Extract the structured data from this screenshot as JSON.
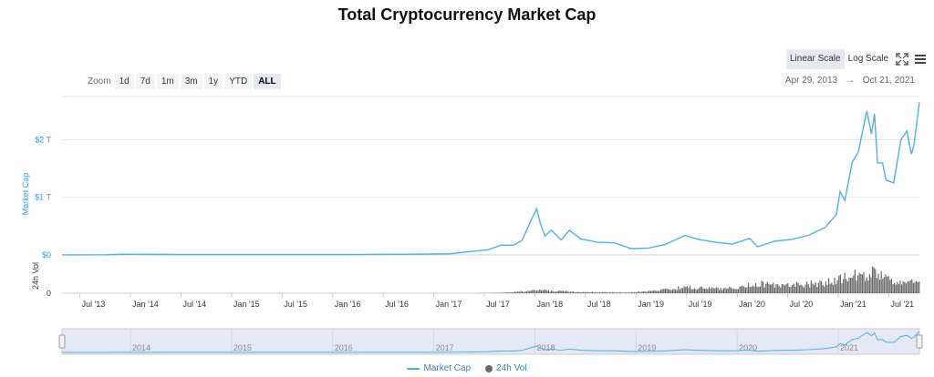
{
  "chart_data": {
    "type": "line",
    "title": "Total Cryptocurrency Market Cap",
    "scale_buttons": [
      "Linear Scale",
      "Log Scale"
    ],
    "active_scale": "Linear Scale",
    "zoom_label": "Zoom",
    "zoom_options": [
      "1d",
      "7d",
      "1m",
      "3m",
      "1y",
      "YTD",
      "ALL"
    ],
    "active_zoom": "ALL",
    "date_range": {
      "from": "Apr 29, 2013",
      "arrow": "→",
      "to": "Oct 21, 2021"
    },
    "ylabel": "Market Cap",
    "y_ticks": [
      {
        "value": 0,
        "label": "$0"
      },
      {
        "value": 1,
        "label": "$1 T"
      },
      {
        "value": 2,
        "label": "$2 T"
      }
    ],
    "ylim": [
      0,
      2.75
    ],
    "volume_label": "24h Vol",
    "volume_tick": "0",
    "x_ticks": [
      {
        "t": 2013.5,
        "label": "Jul '13"
      },
      {
        "t": 2014.0,
        "label": "Jan '14"
      },
      {
        "t": 2014.5,
        "label": "Jul '14"
      },
      {
        "t": 2015.0,
        "label": "Jan '15"
      },
      {
        "t": 2015.5,
        "label": "Jul '15"
      },
      {
        "t": 2016.0,
        "label": "Jan '16"
      },
      {
        "t": 2016.5,
        "label": "Jul '16"
      },
      {
        "t": 2017.0,
        "label": "Jan '17"
      },
      {
        "t": 2017.5,
        "label": "Jul '17"
      },
      {
        "t": 2018.0,
        "label": "Jan '18"
      },
      {
        "t": 2018.5,
        "label": "Jul '18"
      },
      {
        "t": 2019.0,
        "label": "Jan '19"
      },
      {
        "t": 2019.5,
        "label": "Jul '19"
      },
      {
        "t": 2020.0,
        "label": "Jan '20"
      },
      {
        "t": 2020.5,
        "label": "Jul '20"
      },
      {
        "t": 2021.0,
        "label": "Jan '21"
      },
      {
        "t": 2021.5,
        "label": "Jul '21"
      }
    ],
    "navigator_years": [
      "2014",
      "2015",
      "2016",
      "2017",
      "2018",
      "2019",
      "2020",
      "2021"
    ],
    "xlim": [
      "2013-04-29",
      "2021-10-21"
    ],
    "series": [
      {
        "name": "Market Cap",
        "color": "#56aede",
        "unit": "trillion USD",
        "x": [
          "2013-04-29",
          "2013-10-01",
          "2013-12-01",
          "2014-06-01",
          "2015-01-01",
          "2016-01-01",
          "2016-12-01",
          "2017-03-01",
          "2017-05-15",
          "2017-07-15",
          "2017-09-01",
          "2017-10-15",
          "2017-11-15",
          "2017-12-20",
          "2018-01-07",
          "2018-01-20",
          "2018-02-06",
          "2018-03-01",
          "2018-04-06",
          "2018-05-05",
          "2018-06-15",
          "2018-08-15",
          "2018-10-15",
          "2018-12-15",
          "2019-02-15",
          "2019-04-15",
          "2019-06-26",
          "2019-08-15",
          "2019-10-15",
          "2019-12-15",
          "2020-02-15",
          "2020-03-15",
          "2020-05-15",
          "2020-07-15",
          "2020-09-15",
          "2020-11-15",
          "2020-12-25",
          "2021-01-08",
          "2021-01-25",
          "2021-02-20",
          "2021-03-15",
          "2021-04-14",
          "2021-05-01",
          "2021-05-12",
          "2021-05-23",
          "2021-06-10",
          "2021-06-22",
          "2021-07-20",
          "2021-08-15",
          "2021-09-06",
          "2021-09-22",
          "2021-10-01",
          "2021-10-21"
        ],
        "values": [
          0.002,
          0.003,
          0.013,
          0.008,
          0.006,
          0.007,
          0.015,
          0.02,
          0.06,
          0.09,
          0.17,
          0.17,
          0.25,
          0.62,
          0.8,
          0.56,
          0.33,
          0.43,
          0.26,
          0.43,
          0.28,
          0.22,
          0.21,
          0.11,
          0.12,
          0.18,
          0.34,
          0.27,
          0.22,
          0.19,
          0.29,
          0.14,
          0.24,
          0.27,
          0.34,
          0.48,
          0.7,
          1.1,
          0.95,
          1.6,
          1.8,
          2.5,
          2.1,
          2.45,
          1.6,
          1.6,
          1.3,
          1.25,
          2.0,
          2.15,
          1.75,
          1.9,
          2.65
        ]
      },
      {
        "name": "24h Vol",
        "color": "#666666",
        "unit": "relative",
        "x": [
          "2013-04-29",
          "2017-05-01",
          "2017-09-01",
          "2017-12-01",
          "2018-01-07",
          "2018-06-01",
          "2018-12-01",
          "2019-04-01",
          "2019-06-26",
          "2019-10-01",
          "2020-01-01",
          "2020-03-15",
          "2020-06-01",
          "2020-09-01",
          "2020-12-01",
          "2021-01-15",
          "2021-02-25",
          "2021-04-15",
          "2021-05-15",
          "2021-06-15",
          "2021-07-20",
          "2021-09-01",
          "2021-10-21"
        ],
        "values": [
          0.0,
          0.0,
          0.02,
          0.08,
          0.12,
          0.05,
          0.03,
          0.12,
          0.25,
          0.18,
          0.22,
          0.38,
          0.28,
          0.35,
          0.45,
          0.6,
          0.68,
          0.65,
          0.9,
          0.6,
          0.35,
          0.45,
          0.4
        ]
      }
    ],
    "legend": [
      "Market Cap",
      "24h Vol"
    ]
  }
}
